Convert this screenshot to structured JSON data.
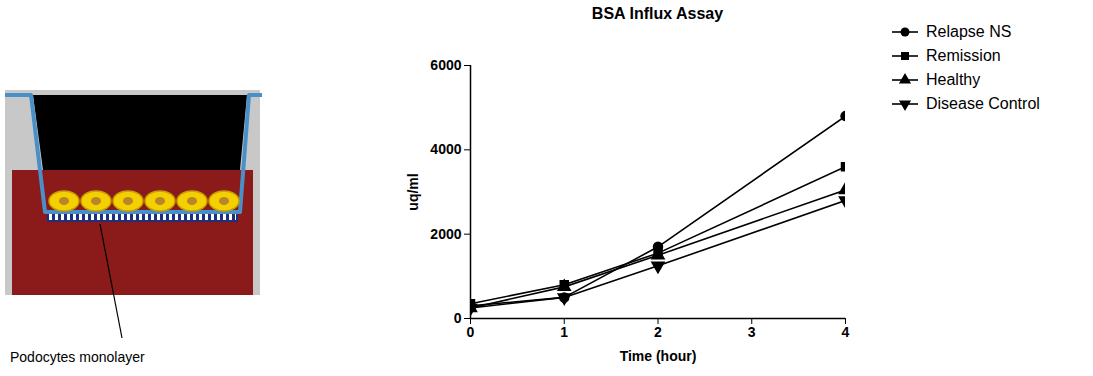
{
  "diagram": {
    "label": "Podocytes monolayer"
  },
  "chart_data": {
    "type": "line",
    "title": "BSA Influx Assay",
    "x_label": "Time (hour)",
    "y_label": "uq/ml",
    "x": [
      0,
      1,
      2,
      4
    ],
    "series": [
      {
        "name": "Relapse NS",
        "color": "#000000",
        "marker": "circle",
        "values": [
          300,
          500,
          1700,
          4800
        ]
      },
      {
        "name": "Remission",
        "color": "#000000",
        "marker": "square",
        "values": [
          350,
          800,
          1550,
          3600
        ]
      },
      {
        "name": "Healthy",
        "color": "#000000",
        "marker": "triangle",
        "values": [
          250,
          750,
          1500,
          3050
        ]
      },
      {
        "name": "Disease Control",
        "color": "#000000",
        "marker": "triangle-down",
        "values": [
          250,
          500,
          1250,
          2800
        ]
      }
    ],
    "xlim": [
      0,
      4
    ],
    "xticks": [
      0,
      1,
      2,
      3,
      4
    ],
    "ylim": [
      0,
      6000
    ],
    "yticks": [
      0,
      2000,
      4000,
      6000
    ],
    "grid": false,
    "legend": "right"
  }
}
